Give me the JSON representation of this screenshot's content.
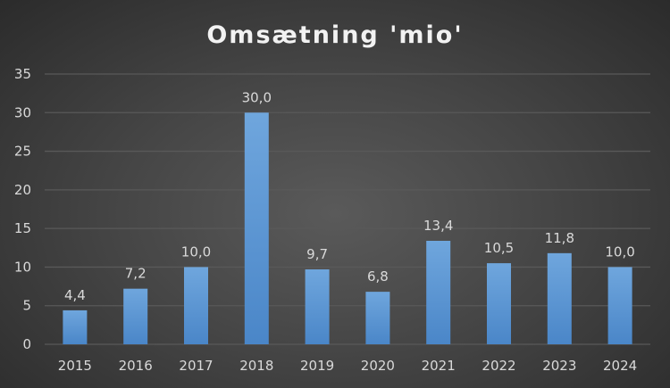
{
  "chart_data": {
    "type": "bar",
    "title": "Omsætning 'mio'",
    "xlabel": "",
    "ylabel": "",
    "categories": [
      "2015",
      "2016",
      "2017",
      "2018",
      "2019",
      "2020",
      "2021",
      "2022",
      "2023",
      "2024"
    ],
    "values": [
      4.4,
      7.2,
      10.0,
      30.0,
      9.7,
      6.8,
      13.4,
      10.5,
      11.8,
      10.0
    ],
    "data_labels": [
      "4,4",
      "7,2",
      "10,0",
      "30,0",
      "9,7",
      "6,8",
      "13,4",
      "10,5",
      "11,8",
      "10,0"
    ],
    "ylim": [
      0,
      35
    ],
    "yticks": [
      "0",
      "5",
      "10",
      "15",
      "20",
      "25",
      "30",
      "35"
    ],
    "grid": true,
    "legend": "none",
    "colors": {
      "bar_top": "#6fa6dd",
      "bar_bottom": "#4a86c8",
      "grid": "#595959"
    }
  }
}
